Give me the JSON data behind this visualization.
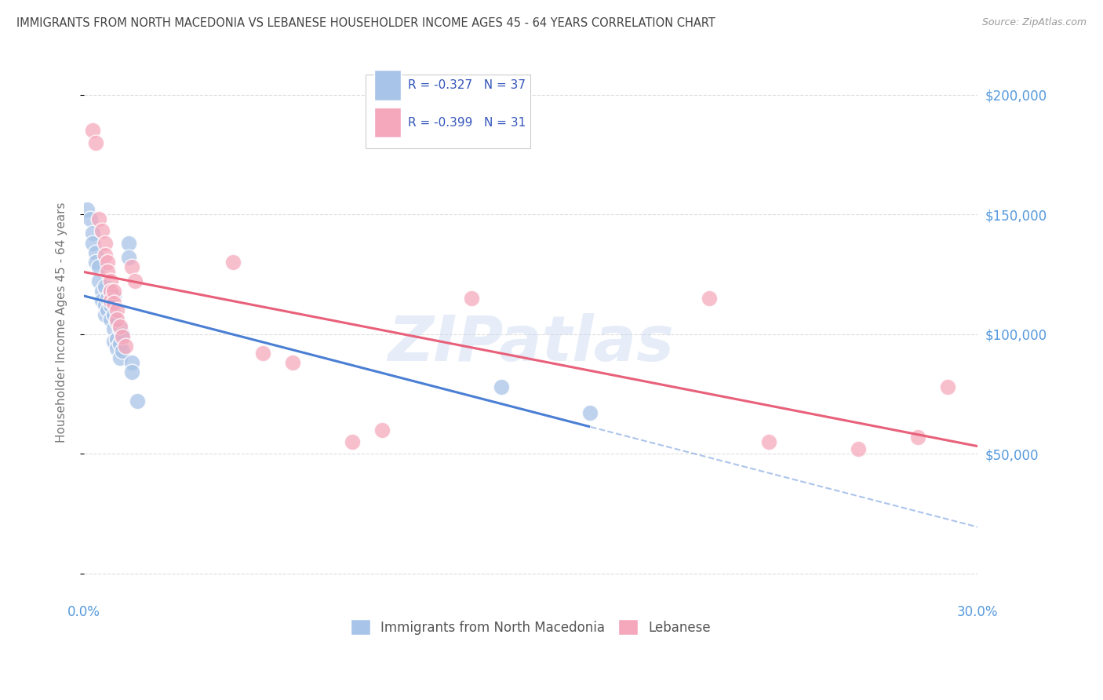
{
  "title": "IMMIGRANTS FROM NORTH MACEDONIA VS LEBANESE HOUSEHOLDER INCOME AGES 45 - 64 YEARS CORRELATION CHART",
  "source": "Source: ZipAtlas.com",
  "ylabel": "Householder Income Ages 45 - 64 years",
  "xlim": [
    0.0,
    0.3
  ],
  "ylim": [
    -10000,
    220000
  ],
  "yticks": [
    0,
    50000,
    100000,
    150000,
    200000
  ],
  "ytick_labels": [
    "",
    "$50,000",
    "$100,000",
    "$150,000",
    "$200,000"
  ],
  "xticks": [
    0.0,
    0.05,
    0.1,
    0.15,
    0.2,
    0.25,
    0.3
  ],
  "xtick_labels": [
    "0.0%",
    "",
    "",
    "",
    "",
    "",
    "30.0%"
  ],
  "legend_r_blue": "R = -0.327",
  "legend_n_blue": "N = 37",
  "legend_r_pink": "R = -0.399",
  "legend_n_pink": "N = 31",
  "legend_label_blue": "Immigrants from North Macedonia",
  "legend_label_pink": "Lebanese",
  "blue_color": "#a8c4e8",
  "pink_color": "#f5a8bc",
  "blue_line_color": "#4a7fd4",
  "pink_line_color": "#e8607a",
  "blue_scatter": [
    [
      0.001,
      152000
    ],
    [
      0.002,
      148000
    ],
    [
      0.003,
      142000
    ],
    [
      0.003,
      138000
    ],
    [
      0.004,
      134000
    ],
    [
      0.004,
      130000
    ],
    [
      0.005,
      128000
    ],
    [
      0.005,
      122000
    ],
    [
      0.006,
      118000
    ],
    [
      0.006,
      114000
    ],
    [
      0.007,
      120000
    ],
    [
      0.007,
      112000
    ],
    [
      0.007,
      108000
    ],
    [
      0.008,
      115000
    ],
    [
      0.008,
      110000
    ],
    [
      0.009,
      118000
    ],
    [
      0.009,
      112000
    ],
    [
      0.009,
      106000
    ],
    [
      0.01,
      116000
    ],
    [
      0.01,
      108000
    ],
    [
      0.01,
      102000
    ],
    [
      0.01,
      97000
    ],
    [
      0.011,
      105000
    ],
    [
      0.011,
      98000
    ],
    [
      0.011,
      94000
    ],
    [
      0.012,
      102000
    ],
    [
      0.012,
      96000
    ],
    [
      0.012,
      90000
    ],
    [
      0.013,
      100000
    ],
    [
      0.013,
      93000
    ],
    [
      0.015,
      138000
    ],
    [
      0.015,
      132000
    ],
    [
      0.016,
      88000
    ],
    [
      0.016,
      84000
    ],
    [
      0.018,
      72000
    ],
    [
      0.14,
      78000
    ],
    [
      0.17,
      67000
    ]
  ],
  "pink_scatter": [
    [
      0.003,
      185000
    ],
    [
      0.004,
      180000
    ],
    [
      0.005,
      148000
    ],
    [
      0.006,
      143000
    ],
    [
      0.007,
      138000
    ],
    [
      0.007,
      133000
    ],
    [
      0.008,
      130000
    ],
    [
      0.008,
      126000
    ],
    [
      0.009,
      122000
    ],
    [
      0.009,
      118000
    ],
    [
      0.009,
      114000
    ],
    [
      0.01,
      118000
    ],
    [
      0.01,
      113000
    ],
    [
      0.011,
      110000
    ],
    [
      0.011,
      106000
    ],
    [
      0.012,
      103000
    ],
    [
      0.013,
      99000
    ],
    [
      0.014,
      95000
    ],
    [
      0.016,
      128000
    ],
    [
      0.017,
      122000
    ],
    [
      0.05,
      130000
    ],
    [
      0.06,
      92000
    ],
    [
      0.07,
      88000
    ],
    [
      0.09,
      55000
    ],
    [
      0.1,
      60000
    ],
    [
      0.13,
      115000
    ],
    [
      0.21,
      115000
    ],
    [
      0.23,
      55000
    ],
    [
      0.26,
      52000
    ],
    [
      0.28,
      57000
    ],
    [
      0.29,
      78000
    ]
  ],
  "watermark": "ZIPatlas",
  "background_color": "#ffffff",
  "grid_color": "#dddddd",
  "title_color": "#444444",
  "tick_color": "#5599dd",
  "legend_text_color": "#3355bb"
}
